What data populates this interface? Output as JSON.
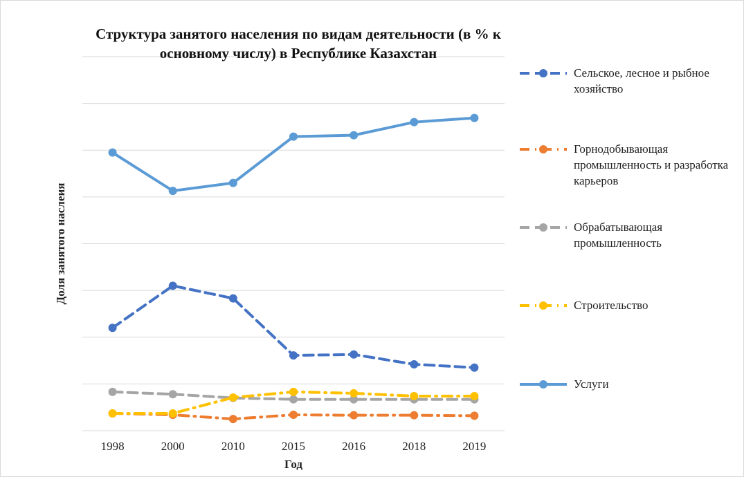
{
  "chart_data": {
    "type": "line",
    "title": "Структура занятого населения по видам деятельности (в % к основному числу) в Республике Казахстан",
    "x_label": "Год",
    "y_label": "Доля занятого наслеия",
    "categories": [
      "1998",
      "2000",
      "2010",
      "2015",
      "2016",
      "2018",
      "2019"
    ],
    "ylim": [
      0,
      80
    ],
    "yticks": [
      0,
      10,
      20,
      30,
      40,
      50,
      60,
      70,
      80
    ],
    "grid": true,
    "series": [
      {
        "name": "Сельское, лесное и рыбное хозяйство",
        "color": "#4472c4",
        "dash": "dash",
        "values": [
          22,
          31,
          28.3,
          16.1,
          16.3,
          14.2,
          13.5
        ]
      },
      {
        "name": "Горнодобывающая промышленность и разработка карьеров",
        "color": "#ed7d31",
        "dash": "dashdot",
        "values": [
          3.7,
          3.4,
          2.5,
          3.4,
          3.3,
          3.3,
          3.2
        ]
      },
      {
        "name": "Обрабатывающая промышленность",
        "color": "#a5a5a5",
        "dash": "dash",
        "values": [
          8.3,
          7.8,
          7.0,
          6.7,
          6.7,
          6.7,
          6.7
        ]
      },
      {
        "name": "Строительство",
        "color": "#ffc000",
        "dash": "dashdot",
        "values": [
          3.7,
          3.7,
          7.1,
          8.3,
          8.0,
          7.4,
          7.4
        ]
      },
      {
        "name": "Услуги",
        "color": "#5b9bd5",
        "dash": "solid",
        "values": [
          59.5,
          51.3,
          53,
          62.9,
          63.2,
          66,
          66.9
        ]
      }
    ]
  }
}
